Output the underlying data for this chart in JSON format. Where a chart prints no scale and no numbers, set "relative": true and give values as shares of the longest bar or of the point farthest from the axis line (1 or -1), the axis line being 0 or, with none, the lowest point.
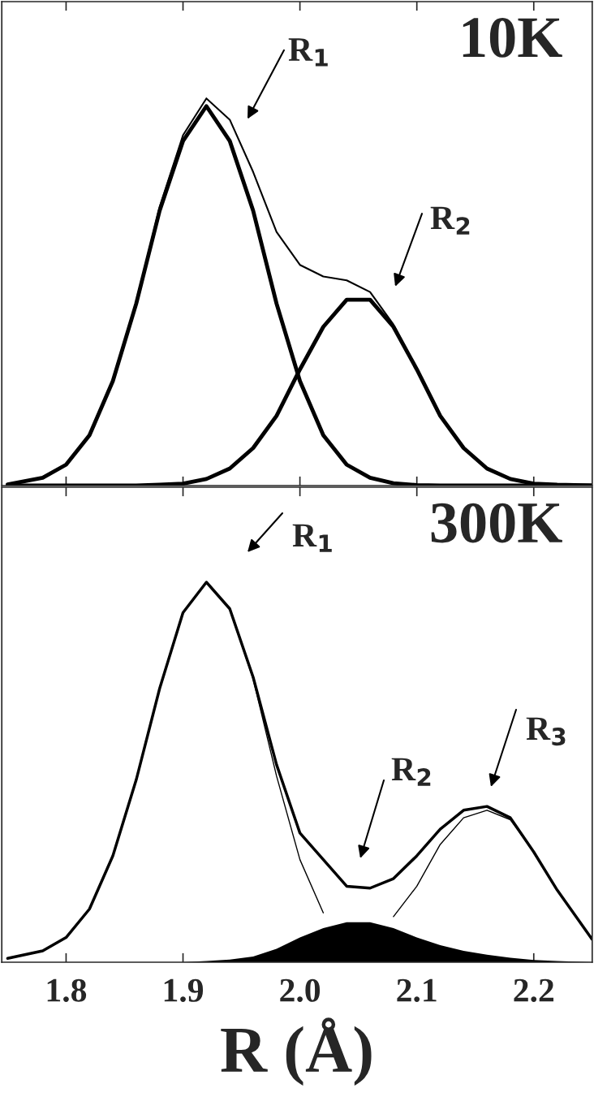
{
  "chart_data": [
    {
      "type": "line",
      "title": "10K",
      "relative": true,
      "xlim": [
        1.745,
        2.25
      ],
      "xticks": [
        {
          "value": 1.8,
          "label": null
        },
        {
          "value": 1.9,
          "label": null
        },
        {
          "value": 2.0,
          "label": null
        },
        {
          "value": 2.1,
          "label": null
        },
        {
          "value": 2.2,
          "label": null
        }
      ],
      "tick_labels": false,
      "grid": false,
      "legend": false,
      "x": [
        1.75,
        1.78,
        1.8,
        1.82,
        1.84,
        1.86,
        1.88,
        1.9,
        1.92,
        1.94,
        1.96,
        1.98,
        2.0,
        2.02,
        2.04,
        2.06,
        2.08,
        2.1,
        2.12,
        2.14,
        2.16,
        2.18,
        2.2,
        2.22,
        2.25
      ],
      "series": [
        {
          "color": "#000000",
          "values": [
            0.003,
            0.02,
            0.054,
            0.13,
            0.27,
            0.47,
            0.71,
            0.89,
            0.98,
            0.89,
            0.71,
            0.47,
            0.27,
            0.13,
            0.054,
            0.02,
            0.006,
            0.001,
            0,
            0,
            0,
            0,
            0,
            0,
            0
          ]
        },
        {
          "color": "#000000",
          "values": [
            0,
            0,
            0,
            0,
            0,
            0,
            0.002,
            0.005,
            0.017,
            0.044,
            0.097,
            0.18,
            0.3,
            0.41,
            0.48,
            0.48,
            0.41,
            0.3,
            0.18,
            0.097,
            0.044,
            0.017,
            0.005,
            0.002,
            0
          ]
        },
        {
          "color": "#000000",
          "values": [
            0.003,
            0.02,
            0.054,
            0.13,
            0.27,
            0.47,
            0.72,
            0.905,
            1.0,
            0.945,
            0.81,
            0.655,
            0.57,
            0.54,
            0.53,
            0.5,
            0.416,
            0.301,
            0.18,
            0.097,
            0.044,
            0.017,
            0.005,
            0.002,
            0
          ]
        }
      ],
      "annotations": [
        "R$_{1}$",
        "R$_{2}$"
      ]
    },
    {
      "type": "line",
      "title": "300K",
      "relative": true,
      "xlim": [
        1.745,
        2.25
      ],
      "xticks": [
        {
          "value": 1.8,
          "label": "1.8"
        },
        {
          "value": 1.9,
          "label": "1.9"
        },
        {
          "value": 2.0,
          "label": "2.0"
        },
        {
          "value": 2.1,
          "label": "2.1"
        },
        {
          "value": 2.2,
          "label": "2.2"
        }
      ],
      "tick_labels": "x",
      "xlabel": "R (Å)",
      "grid": false,
      "legend": false,
      "x": [
        1.75,
        1.78,
        1.8,
        1.82,
        1.84,
        1.86,
        1.88,
        1.9,
        1.92,
        1.94,
        1.96,
        1.98,
        2.0,
        2.02,
        2.04,
        2.06,
        2.08,
        2.1,
        2.12,
        2.14,
        2.16,
        2.18,
        2.2,
        2.22,
        2.25
      ],
      "series": [
        {
          "color": "#000000",
          "values": [
            0.01,
            0.03,
            0.065,
            0.14,
            0.28,
            0.48,
            0.72,
            0.92,
            1.0,
            0.93,
            0.75,
            0.52,
            0.34,
            0.27,
            0.2,
            0.195,
            0.22,
            0.28,
            0.35,
            0.4,
            0.41,
            0.38,
            0.29,
            0.19,
            0.06
          ]
        },
        {
          "color": "#000000",
          "values": [
            0.01,
            0.03,
            0.065,
            0.14,
            0.28,
            0.48,
            0.72,
            0.92,
            1.0,
            0.93,
            0.745,
            0.49,
            0.27,
            0.13,
            null,
            null,
            null,
            null,
            null,
            null,
            null,
            null,
            null,
            null,
            null
          ]
        },
        {
          "color": "#000000",
          "values": [
            null,
            null,
            null,
            null,
            null,
            null,
            null,
            null,
            null,
            null,
            null,
            null,
            null,
            null,
            null,
            null,
            0.12,
            0.2,
            0.31,
            0.38,
            0.4,
            0.375,
            0.29,
            0.19,
            0.06
          ]
        },
        {
          "type": "area",
          "color": "#000000",
          "values": [
            0,
            0,
            0,
            0,
            0,
            0,
            0,
            0,
            0.003,
            0.007,
            0.015,
            0.035,
            0.065,
            0.09,
            0.105,
            0.105,
            0.09,
            0.065,
            0.045,
            0.03,
            0.02,
            0.012,
            0.006,
            0.003,
            0
          ]
        }
      ],
      "annotations": [
        "R$_{1}$",
        "R$_{2}$",
        "R$_{3}$"
      ]
    }
  ]
}
